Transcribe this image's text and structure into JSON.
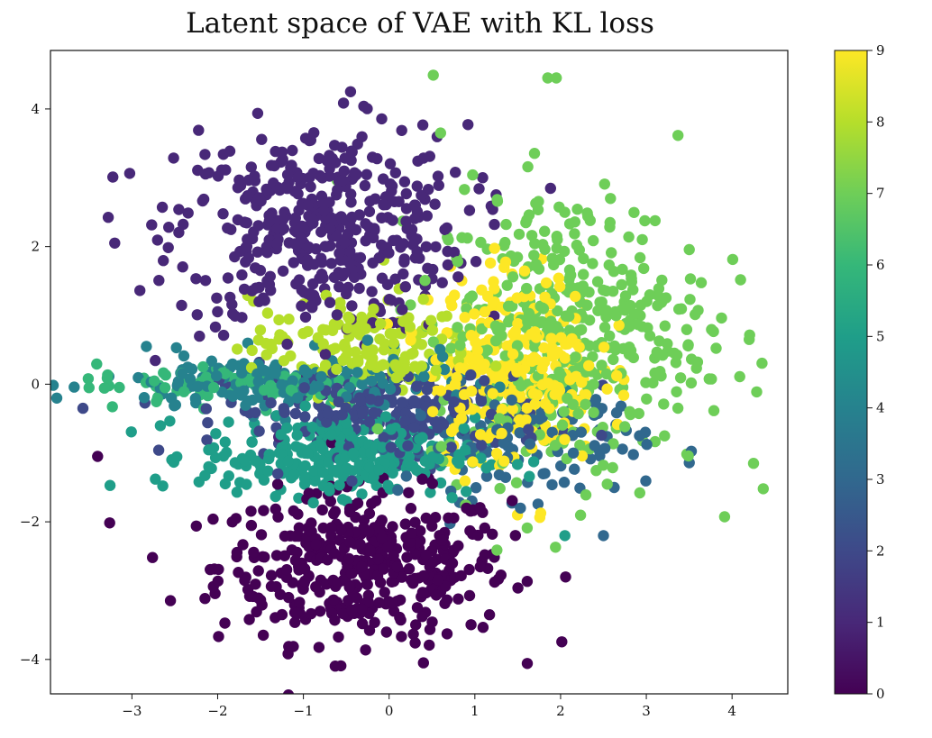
{
  "chart_data": {
    "type": "scatter",
    "title": "Latent space of VAE with KL loss",
    "xlabel": "",
    "ylabel": "",
    "xlim": [
      -3.95,
      4.65
    ],
    "ylim": [
      -4.5,
      4.85
    ],
    "xticks": [
      -3,
      -2,
      -1,
      0,
      1,
      2,
      3,
      4
    ],
    "yticks": [
      -4,
      -2,
      0,
      2,
      4
    ],
    "xtick_labels": [
      "−3",
      "−2",
      "−1",
      "0",
      "1",
      "2",
      "3",
      "4"
    ],
    "ytick_labels": [
      "−4",
      "−2",
      "0",
      "2",
      "4"
    ],
    "grid": false,
    "colorbar": {
      "range": [
        0,
        9
      ],
      "ticks": [
        0,
        1,
        2,
        3,
        4,
        5,
        6,
        7,
        8,
        9
      ],
      "tick_labels": [
        "0",
        "1",
        "2",
        "3",
        "4",
        "5",
        "6",
        "7",
        "8",
        "9"
      ],
      "colormap": "viridis"
    },
    "class_colors": [
      "#440154",
      "#482878",
      "#3e4989",
      "#31688e",
      "#26828e",
      "#1f9e89",
      "#35b779",
      "#6ece58",
      "#b5de2b",
      "#fde725"
    ],
    "clusters": [
      {
        "label": 0,
        "center": [
          -0.3,
          -2.65
        ],
        "spread": [
          0.85,
          0.55
        ],
        "count": 420
      },
      {
        "label": 1,
        "center": [
          -0.8,
          2.25
        ],
        "spread": [
          0.85,
          0.75
        ],
        "count": 440
      },
      {
        "label": 2,
        "center": [
          0.0,
          -0.4
        ],
        "spread": [
          0.95,
          0.32
        ],
        "count": 230
      },
      {
        "label": 3,
        "center": [
          1.6,
          -0.85
        ],
        "spread": [
          0.7,
          0.4
        ],
        "count": 120
      },
      {
        "label": 4,
        "center": [
          -1.2,
          0.0
        ],
        "spread": [
          1.1,
          0.22
        ],
        "count": 170
      },
      {
        "label": 5,
        "center": [
          -0.6,
          -1.05
        ],
        "spread": [
          0.8,
          0.28
        ],
        "count": 300
      },
      {
        "label": 6,
        "center": [
          -1.7,
          0.0
        ],
        "spread": [
          0.9,
          0.15
        ],
        "count": 90
      },
      {
        "label": 7,
        "center": [
          2.1,
          0.75
        ],
        "spread": [
          0.8,
          1.05
        ],
        "count": 430
      },
      {
        "label": 8,
        "center": [
          -0.3,
          0.55
        ],
        "spread": [
          0.65,
          0.35
        ],
        "count": 170
      },
      {
        "label": 9,
        "center": [
          1.45,
          0.25
        ],
        "spread": [
          0.5,
          0.7
        ],
        "count": 320
      }
    ],
    "outliers": [
      {
        "label": 1,
        "x": -0.45,
        "y": 4.25
      },
      {
        "label": 1,
        "x": -3.2,
        "y": 2.05
      },
      {
        "label": 7,
        "x": 1.85,
        "y": 4.45
      },
      {
        "label": 7,
        "x": 1.95,
        "y": 4.45
      },
      {
        "label": 7,
        "x": 0.6,
        "y": 3.65
      },
      {
        "label": 7,
        "x": 4.25,
        "y": -1.15
      },
      {
        "label": 7,
        "x": 4.2,
        "y": 0.65
      },
      {
        "label": 0,
        "x": 0.4,
        "y": -4.05
      },
      {
        "label": 0,
        "x": -3.4,
        "y": -1.05
      },
      {
        "label": 6,
        "x": -3.5,
        "y": -0.05
      },
      {
        "label": 3,
        "x": 2.5,
        "y": -2.2
      },
      {
        "label": 5,
        "x": 2.05,
        "y": -2.2
      }
    ]
  }
}
